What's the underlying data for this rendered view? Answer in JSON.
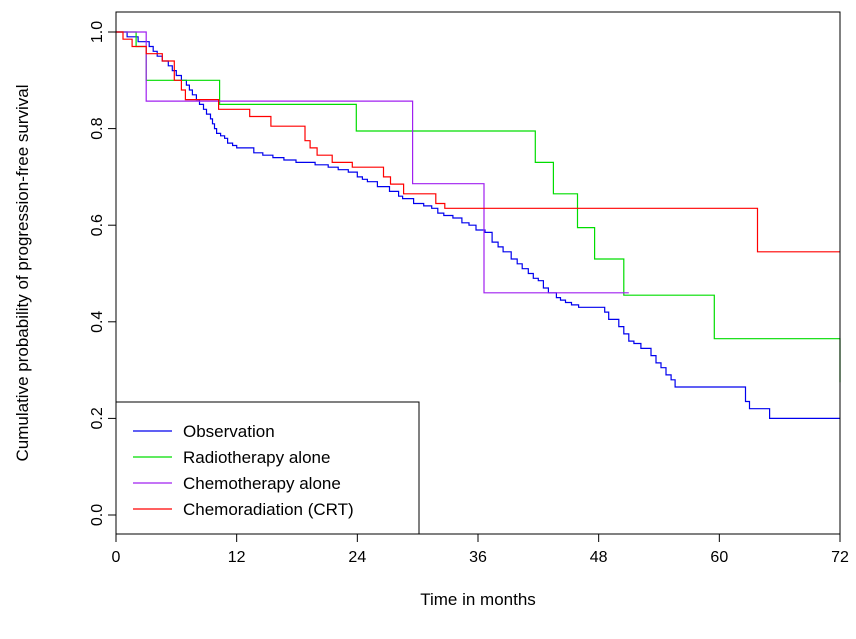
{
  "chart_data": {
    "type": "line",
    "step": true,
    "xlabel": "Time in months",
    "ylabel": "Cumulative probability of progression-free survival",
    "xlim": [
      0,
      72
    ],
    "ylim": [
      0,
      1
    ],
    "xticks": [
      0,
      12,
      24,
      36,
      48,
      60,
      72
    ],
    "xtick_labels": [
      "0",
      "12",
      "24",
      "36",
      "48",
      "60",
      "72"
    ],
    "yticks": [
      0.0,
      0.2,
      0.4,
      0.6,
      0.8,
      1.0
    ],
    "ytick_labels": [
      "0.0",
      "0.2",
      "0.4",
      "0.6",
      "0.8",
      "1.0"
    ],
    "grid": false,
    "legend_position": "bottom-left",
    "series": [
      {
        "name": "Observation",
        "color": "#0000ee",
        "x": [
          0,
          1.1,
          2.2,
          3.3,
          3.7,
          4.1,
          4.6,
          5.2,
          5.6,
          6.0,
          6.5,
          7.0,
          7.3,
          7.6,
          8.0,
          8.3,
          8.7,
          9.0,
          9.4,
          9.6,
          9.8,
          10.0,
          10.4,
          10.8,
          11.1,
          11.6,
          12.0,
          13.7,
          14.6,
          15.6,
          16.7,
          17.9,
          19.8,
          21.1,
          22.1,
          23.1,
          24.0,
          24.5,
          25.0,
          26.0,
          27.2,
          28.1,
          28.5,
          29.6,
          30.6,
          31.4,
          32.0,
          32.6,
          33.5,
          34.4,
          35.1,
          35.8,
          36.7,
          37.4,
          38.0,
          38.5,
          39.3,
          39.9,
          40.4,
          41.0,
          41.5,
          42.0,
          42.5,
          43.0,
          43.8,
          44.2,
          44.7,
          45.3,
          46.0,
          48.6,
          49.0,
          50.0,
          50.5,
          51.0,
          51.5,
          52.2,
          53.2,
          53.7,
          54.2,
          54.7,
          55.2,
          55.6,
          57.1,
          59.9,
          62.6,
          63.0,
          65.0,
          72.0
        ],
        "y": [
          1.0,
          0.99,
          0.98,
          0.97,
          0.96,
          0.95,
          0.94,
          0.93,
          0.92,
          0.91,
          0.9,
          0.89,
          0.88,
          0.87,
          0.86,
          0.85,
          0.84,
          0.83,
          0.82,
          0.81,
          0.8,
          0.79,
          0.785,
          0.78,
          0.77,
          0.765,
          0.76,
          0.75,
          0.745,
          0.74,
          0.735,
          0.73,
          0.725,
          0.72,
          0.715,
          0.71,
          0.7,
          0.695,
          0.69,
          0.68,
          0.67,
          0.66,
          0.655,
          0.645,
          0.64,
          0.635,
          0.625,
          0.62,
          0.615,
          0.605,
          0.6,
          0.59,
          0.585,
          0.565,
          0.555,
          0.545,
          0.53,
          0.52,
          0.51,
          0.5,
          0.49,
          0.485,
          0.47,
          0.46,
          0.45,
          0.445,
          0.44,
          0.435,
          0.43,
          0.42,
          0.405,
          0.39,
          0.375,
          0.36,
          0.355,
          0.345,
          0.33,
          0.315,
          0.305,
          0.29,
          0.28,
          0.265,
          0.265,
          0.265,
          0.235,
          0.22,
          0.2,
          0.2
        ]
      },
      {
        "name": "Radiotherapy alone",
        "color": "#00dd00",
        "x": [
          0,
          2.0,
          3.0,
          10.3,
          23.9,
          41.7,
          43.5,
          45.9,
          47.6,
          50.5,
          59.5,
          72.0
        ],
        "y": [
          1.0,
          0.97,
          0.9,
          0.85,
          0.795,
          0.73,
          0.665,
          0.595,
          0.53,
          0.455,
          0.365,
          0.275
        ]
      },
      {
        "name": "Chemotherapy alone",
        "color": "#a020f0",
        "x": [
          0,
          3.0,
          29.5,
          36.6,
          51.0
        ],
        "y": [
          1.0,
          0.857,
          0.686,
          0.46,
          0.46
        ]
      },
      {
        "name": "Chemoradiation (CRT)",
        "color": "#ff0000",
        "x": [
          0,
          0.7,
          1.6,
          3.0,
          4.6,
          5.8,
          6.5,
          6.9,
          10.2,
          13.3,
          15.4,
          18.8,
          19.3,
          20.0,
          21.5,
          23.5,
          26.6,
          27.3,
          28.6,
          31.8,
          32.7,
          63.8,
          72.0
        ],
        "y": [
          1.0,
          0.985,
          0.97,
          0.955,
          0.94,
          0.9,
          0.88,
          0.86,
          0.84,
          0.825,
          0.805,
          0.775,
          0.76,
          0.745,
          0.73,
          0.72,
          0.7,
          0.685,
          0.665,
          0.645,
          0.635,
          0.545,
          0.545
        ]
      }
    ]
  }
}
